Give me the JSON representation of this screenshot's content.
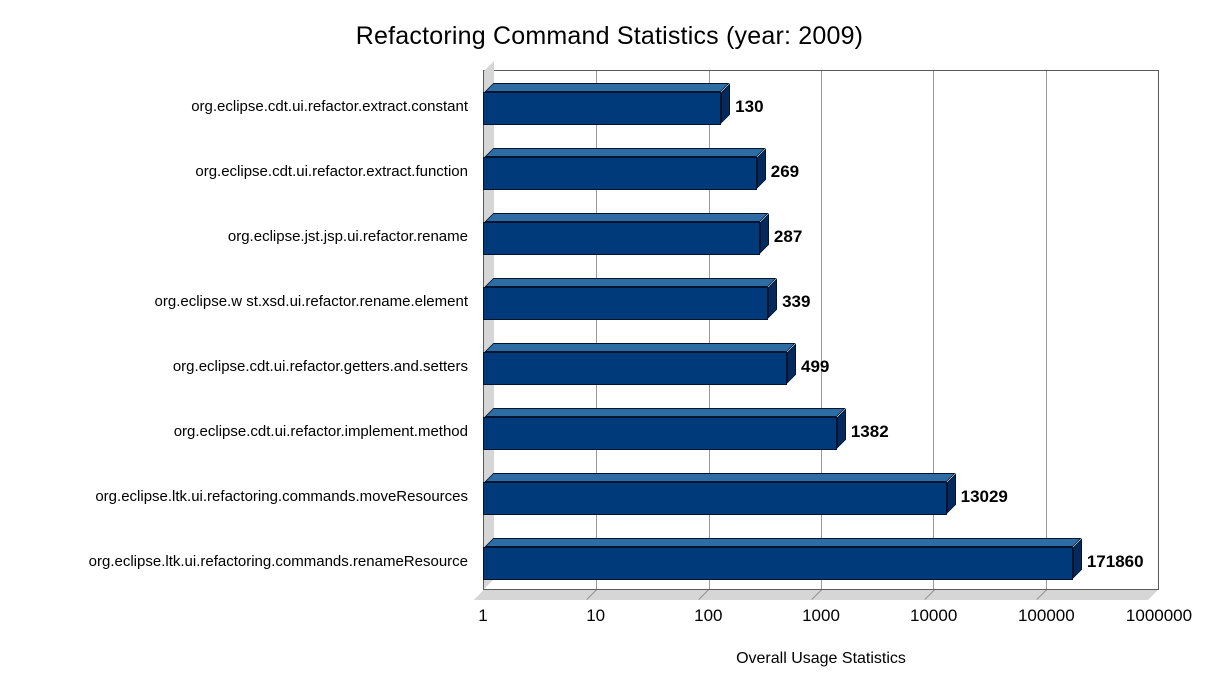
{
  "title": "Refactoring Command Statistics (year: 2009)",
  "chart_data": {
    "type": "bar",
    "orientation": "horizontal",
    "x_scale": "log",
    "title": "Refactoring Command Statistics (year: 2009)",
    "xlabel": "Overall Usage Statistics",
    "ylabel": "",
    "xlim": [
      1,
      1000000
    ],
    "grid": true,
    "x_ticks": [
      "1",
      "10",
      "100",
      "1000",
      "10000",
      "100000",
      "1000000"
    ],
    "categories": [
      "org.eclipse.cdt.ui.refactor.extract.constant",
      "org.eclipse.cdt.ui.refactor.extract.function",
      "org.eclipse.jst.jsp.ui.refactor.rename",
      "org.eclipse.w st.xsd.ui.refactor.rename.element",
      "org.eclipse.cdt.ui.refactor.getters.and.setters",
      "org.eclipse.cdt.ui.refactor.implement.method",
      "org.eclipse.ltk.ui.refactoring.commands.moveResources",
      "org.eclipse.ltk.ui.refactoring.commands.renameResource"
    ],
    "values": [
      130,
      269,
      287,
      339,
      499,
      1382,
      13029,
      171860
    ],
    "value_labels": [
      "130",
      "269",
      "287",
      "339",
      "499",
      "1382",
      "13029",
      "171860"
    ],
    "colors": {
      "bar_front": "#013a7b",
      "bar_top": "#2e6da4",
      "bar_side": "#04295c",
      "bar_edge": "#02142e",
      "wall": "#d6d6d6",
      "gridline": "#9a9a9a"
    }
  }
}
